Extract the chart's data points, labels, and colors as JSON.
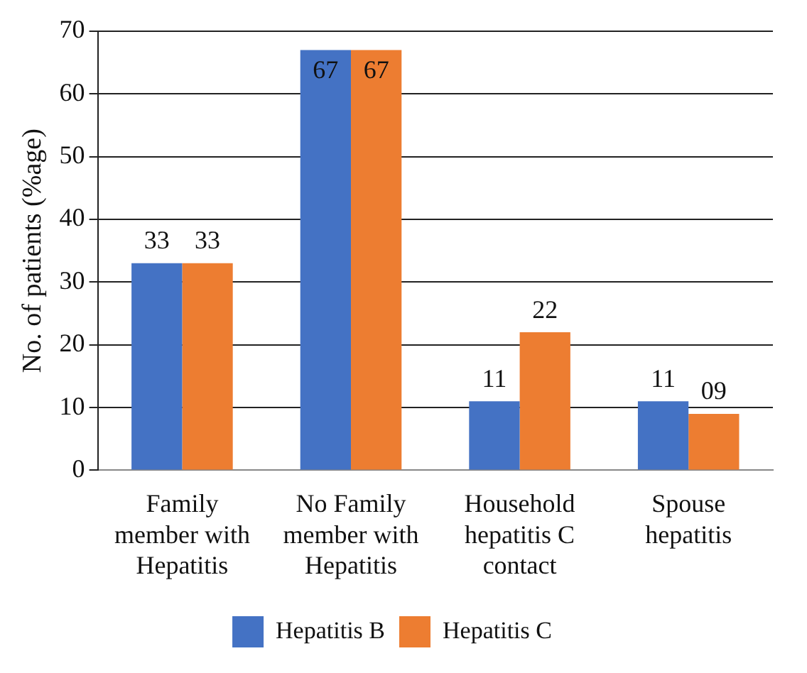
{
  "chart_data": {
    "type": "bar",
    "ylabel": "No. of patients (%age)",
    "categories": [
      "Family member with Hepatitis",
      "No Family member with Hepatitis",
      "Household hepatitis C contact",
      "Spouse hepatitis"
    ],
    "series": [
      {
        "name": "Hepatitis B",
        "color": "#4472c4",
        "values": [
          33,
          67,
          11,
          11
        ],
        "value_labels": [
          "33",
          "67",
          "11",
          "11"
        ]
      },
      {
        "name": "Hepatitis C",
        "color": "#ed7d31",
        "values": [
          33,
          67,
          22,
          9
        ],
        "value_labels": [
          "33",
          "67",
          "22",
          "09"
        ]
      }
    ],
    "ylim": [
      0,
      70
    ],
    "yticks": [
      0,
      10,
      20,
      30,
      40,
      50,
      60,
      70
    ],
    "grid": "y",
    "legend": "bottom"
  }
}
